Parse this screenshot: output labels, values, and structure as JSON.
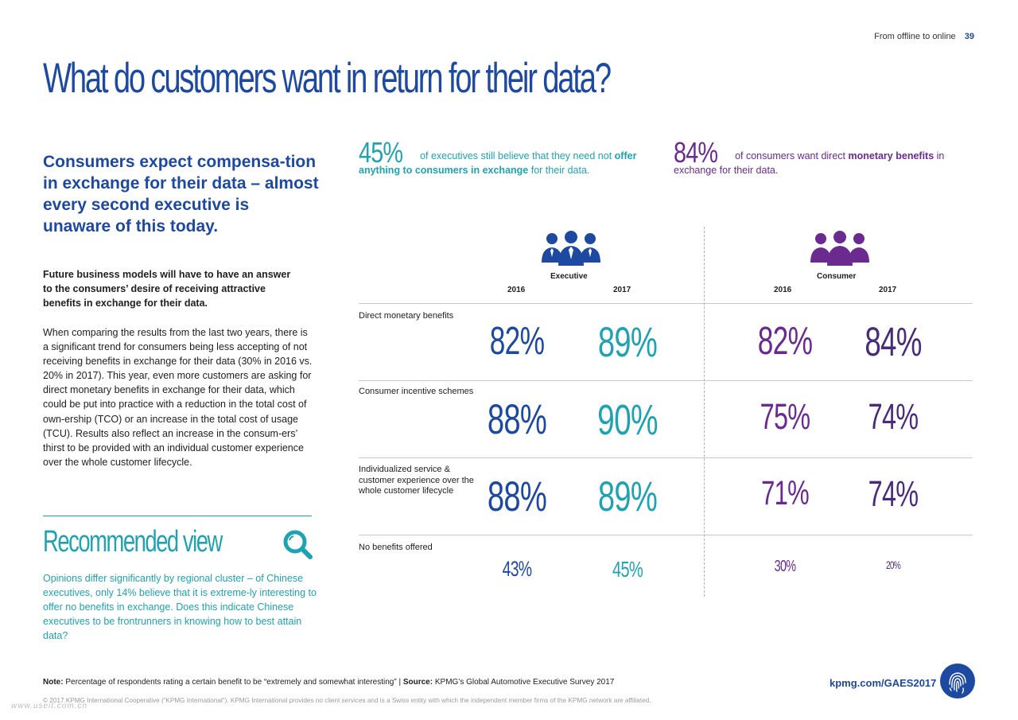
{
  "header": {
    "section": "From offline to online",
    "page_number": "39"
  },
  "title": "What do customers want in return for their data?",
  "lead": "Consumers expect compensa-tion in exchange for their data – almost every second executive is unaware of this today.",
  "subheading": "Future business models will have to have an answer to the consumers’ desire of receiving attractive benefits in exchange for their data.",
  "body": "When comparing the results from the last two years, there is a significant trend for consumers being less accepting of not receiving benefits in exchange for their data (30% in 2016 vs. 20% in 2017). This year, even more customers are asking for direct monetary benefits in exchange for their data, which could be put into practice with a reduction in the total cost of own-ership (TCO) or an increase in the total cost of usage (TCU). Results also reflect an increase in the consum-ers’ thirst to be provided with an individual customer experience over the whole customer lifecycle.",
  "recommended": {
    "title": "Recommended view",
    "text": "Opinions differ significantly by regional cluster – of Chinese executives, only 14% believe that it is extreme-ly interesting to offer no benefits in exchange. Does this indicate Chinese executives to be frontrunners in knowing how to best attain data?"
  },
  "stat_exec": {
    "value": "45%",
    "pre": "of executives still believe that they need not ",
    "bold": "offer anything to consumers in exchange",
    "post": " for their data."
  },
  "stat_cons": {
    "value": "84%",
    "pre": "of consumers want direct ",
    "bold": "monetary benefits",
    "post": " in exchange for their data."
  },
  "groups": {
    "executive": {
      "label": "Executive",
      "year1": "2016",
      "year2": "2017"
    },
    "consumer": {
      "label": "Consumer",
      "year1": "2016",
      "year2": "2017"
    }
  },
  "rows": [
    {
      "label": "Direct monetary benefits",
      "values": [
        "82%",
        "89%",
        "82%",
        "84%"
      ]
    },
    {
      "label": "Consumer incentive schemes",
      "values": [
        "88%",
        "90%",
        "75%",
        "74%"
      ]
    },
    {
      "label": "Individualized service & customer experience over the whole customer lifecycle",
      "values": [
        "88%",
        "89%",
        "71%",
        "74%"
      ]
    },
    {
      "label": "No benefits offered",
      "values": [
        "43%",
        "45%",
        "30%",
        "20%"
      ]
    }
  ],
  "colors": {
    "exec_2016": "#1e49a0",
    "exec_2017": "#1fa3b0",
    "cons_2016": "#6a2a8f",
    "cons_2017": "#4a2a7a"
  },
  "footer": {
    "note_label": "Note:",
    "note_text": " Percentage of respondents rating a certain benefit to be “extremely and somewhat interesting” | ",
    "source_label": "Source:",
    "source_text": " KPMG’s Global Automotive Executive Survey 2017",
    "url": "kpmg.com/GAES2017",
    "copyright": "© 2017 KPMG International Cooperative (“KPMG International”). KPMG International provides no client services and is a Swiss entity with which the independent member firms of the KPMG network are affiliated.",
    "watermark": "www.useit.com.cn"
  },
  "icons": [
    "people-group-icon",
    "magnifier-icon",
    "fingerprint-icon"
  ]
}
